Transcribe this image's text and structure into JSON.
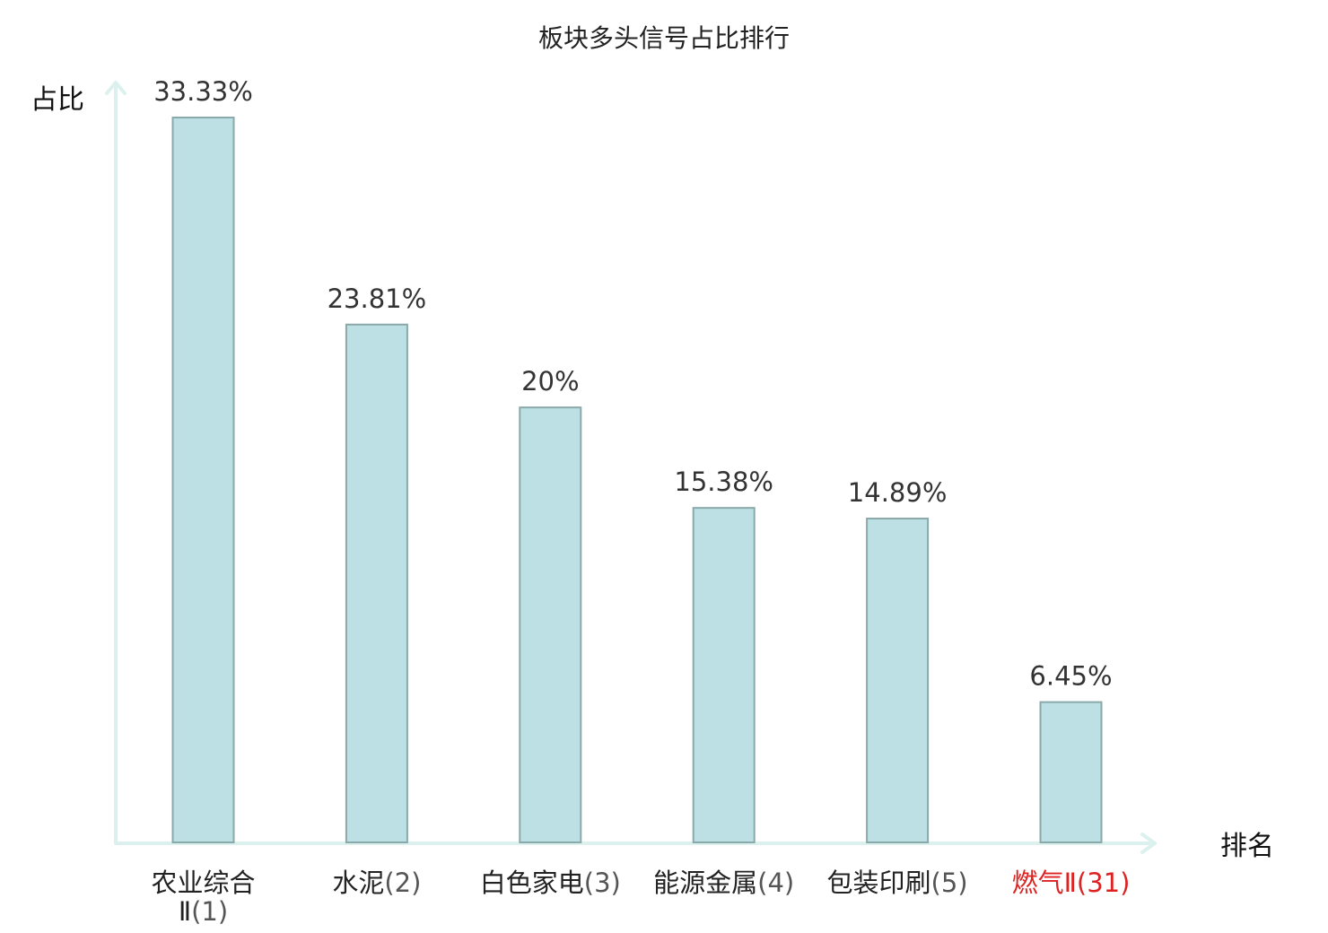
{
  "chart_data": {
    "type": "bar",
    "title": "板块多头信号占比排行",
    "ylabel": "占比",
    "xlabel": "排名",
    "ylim": [
      0,
      35
    ],
    "grid": false,
    "categories": [
      "农业综合Ⅱ(1)",
      "水泥(2)",
      "白色家电(3)",
      "能源金属(4)",
      "包装印刷(5)",
      "燃气Ⅱ(31)"
    ],
    "category_names": [
      "农业综合Ⅱ",
      "水泥",
      "白色家电",
      "能源金属",
      "包装印刷",
      "燃气Ⅱ"
    ],
    "ranks": [
      "(1)",
      "(2)",
      "(3)",
      "(4)",
      "(5)",
      "(31)"
    ],
    "values": [
      33.33,
      23.81,
      20,
      15.38,
      14.89,
      6.45
    ],
    "value_labels": [
      "33.33%",
      "23.81%",
      "20%",
      "15.38%",
      "14.89%",
      "6.45%"
    ],
    "highlight_index": 5,
    "colors": {
      "bar_fill": "#bce0e3",
      "bar_stroke": "#8aa9ab",
      "axis": "#dcf1ee",
      "highlight_text": "#dd2222"
    }
  }
}
